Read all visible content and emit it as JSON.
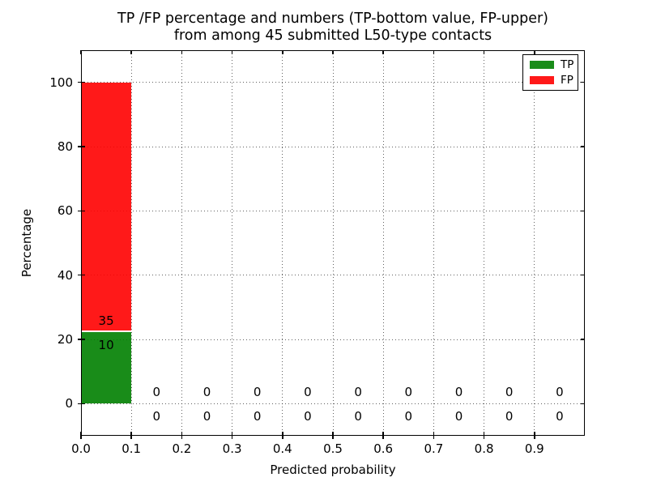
{
  "title": {
    "line1": "TP /FP percentage and numbers (TP-bottom value, FP-upper)",
    "line2": "from among 45 submitted L50-type contacts"
  },
  "chart_data": {
    "type": "bar",
    "stacked": true,
    "title": "TP /FP percentage and numbers (TP-bottom value, FP-upper)\nfrom among 45 submitted L50-type contacts",
    "xlabel": "Predicted probability",
    "ylabel": "Percentage",
    "total_submitted": 45,
    "xlim": [
      0.0,
      1.0
    ],
    "ylim": [
      -10,
      110
    ],
    "grid": "dotted",
    "legend_position": "upper right",
    "bin_width": 0.1,
    "bin_starts": [
      0.0,
      0.1,
      0.2,
      0.3,
      0.4,
      0.5,
      0.6,
      0.7,
      0.8,
      0.9
    ],
    "x_tick_values": [
      0.0,
      0.1,
      0.2,
      0.3,
      0.4,
      0.5,
      0.6,
      0.7,
      0.8,
      0.9
    ],
    "x_tick_labels": [
      "0.0",
      "0.1",
      "0.2",
      "0.3",
      "0.4",
      "0.5",
      "0.6",
      "0.7",
      "0.8",
      "0.9"
    ],
    "y_tick_values": [
      0,
      20,
      40,
      60,
      80,
      100
    ],
    "y_tick_labels": [
      "0",
      "20",
      "40",
      "60",
      "80",
      "100"
    ],
    "series": [
      {
        "name": "TP",
        "color": "#008000",
        "counts": [
          10,
          0,
          0,
          0,
          0,
          0,
          0,
          0,
          0,
          0
        ],
        "percent": [
          22.22,
          0,
          0,
          0,
          0,
          0,
          0,
          0,
          0,
          0
        ]
      },
      {
        "name": "FP",
        "color": "#ff0000",
        "counts": [
          35,
          0,
          0,
          0,
          0,
          0,
          0,
          0,
          0,
          0
        ],
        "percent": [
          77.78,
          0,
          0,
          0,
          0,
          0,
          0,
          0,
          0,
          0
        ]
      }
    ],
    "legend": {
      "entries": [
        {
          "label": "TP",
          "color": "#008000"
        },
        {
          "label": "FP",
          "color": "#ff0000"
        }
      ]
    }
  }
}
